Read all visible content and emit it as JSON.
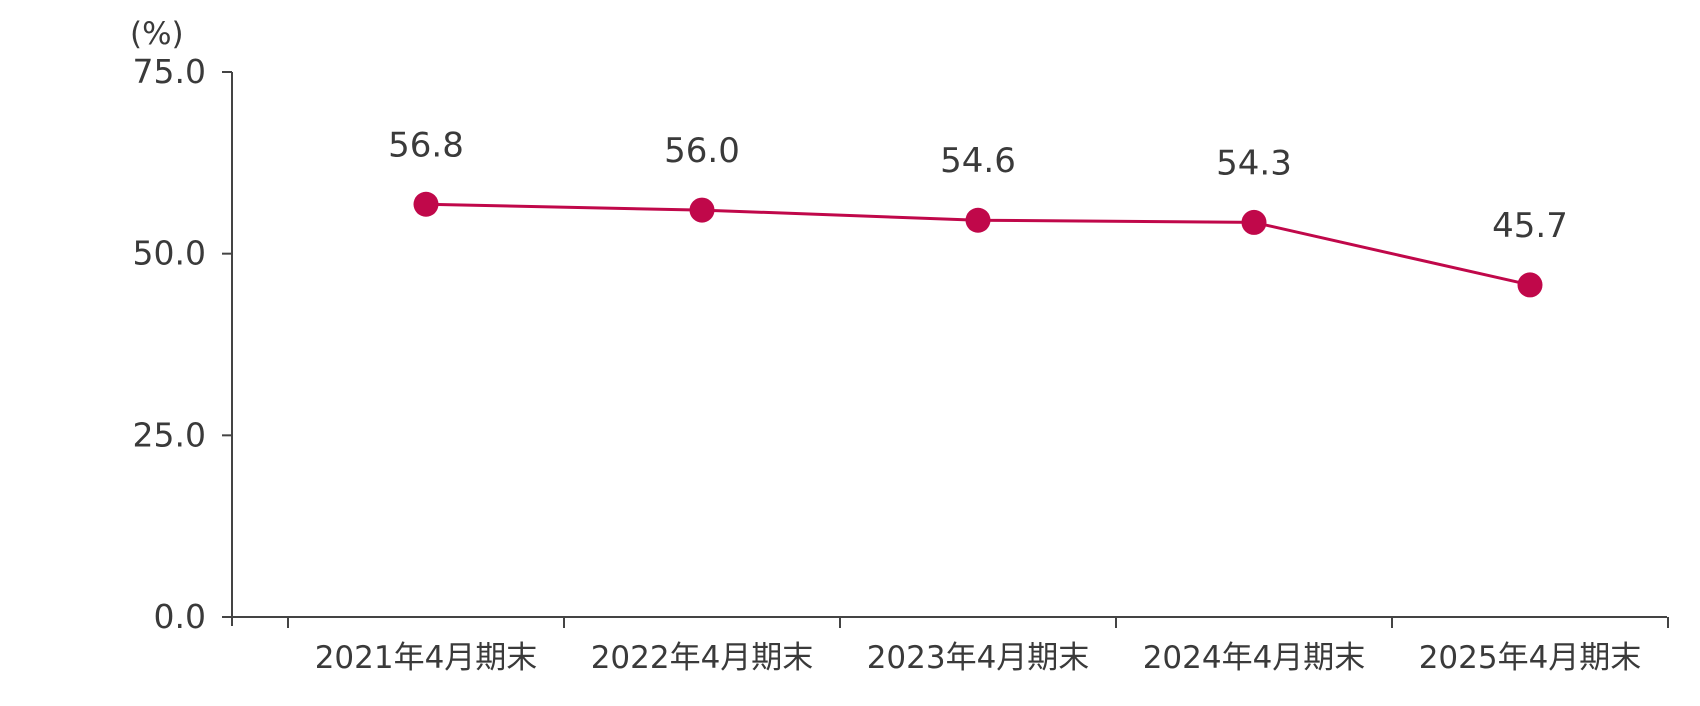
{
  "chart_data": {
    "type": "line",
    "unit_label": "(%)",
    "categories": [
      "2021年4月期末",
      "2022年4月期末",
      "2023年4月期末",
      "2024年4月期末",
      "2025年4月期末"
    ],
    "series": [
      {
        "values": [
          56.8,
          56.0,
          54.6,
          54.3,
          45.7
        ]
      }
    ],
    "data_labels": [
      "56.8",
      "56.0",
      "54.6",
      "54.3",
      "45.7"
    ],
    "y_ticks": [
      "0.0",
      "25.0",
      "50.0",
      "75.0"
    ],
    "ylim": [
      0,
      75
    ],
    "grid": false,
    "legend": "none",
    "colors": {
      "series": "#c0084a",
      "axis": "#444444",
      "text": "#3a3a3a"
    }
  }
}
